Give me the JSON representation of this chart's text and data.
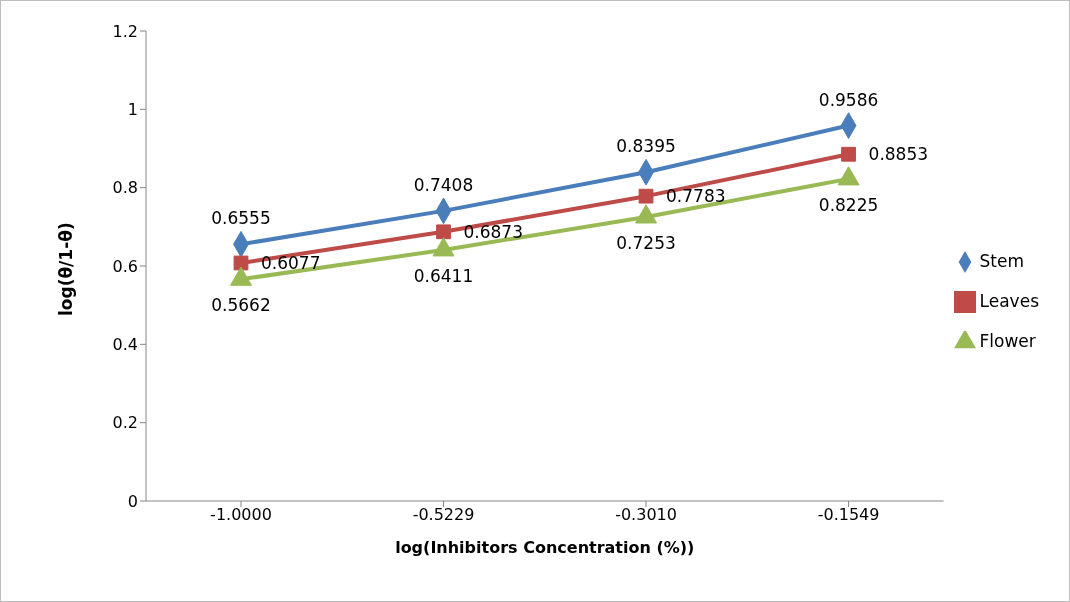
{
  "chart_data": {
    "type": "line",
    "xlabel": "log(Inhibitors Concentration (%))",
    "ylabel": "log(θ/1-θ)",
    "categories": [
      "-1.0000",
      "-0.5229",
      "-0.3010",
      "-0.1549"
    ],
    "series": [
      {
        "name": "Stem",
        "color": "#4a7ebb",
        "marker": "diamond",
        "values": [
          0.6555,
          0.7408,
          0.8395,
          0.9586
        ]
      },
      {
        "name": "Leaves",
        "color": "#be4b48",
        "marker": "square",
        "values": [
          0.6077,
          0.6873,
          0.7783,
          0.8853
        ]
      },
      {
        "name": "Flower",
        "color": "#98b954",
        "marker": "triangle",
        "values": [
          0.5662,
          0.6411,
          0.7253,
          0.8225
        ]
      }
    ],
    "ylim": [
      0,
      1.2
    ],
    "yticks": [
      0,
      0.2,
      0.4,
      0.6,
      0.8,
      1,
      1.2
    ],
    "grid": false,
    "legend": "right",
    "data_labels": true,
    "line_style": "solid"
  }
}
